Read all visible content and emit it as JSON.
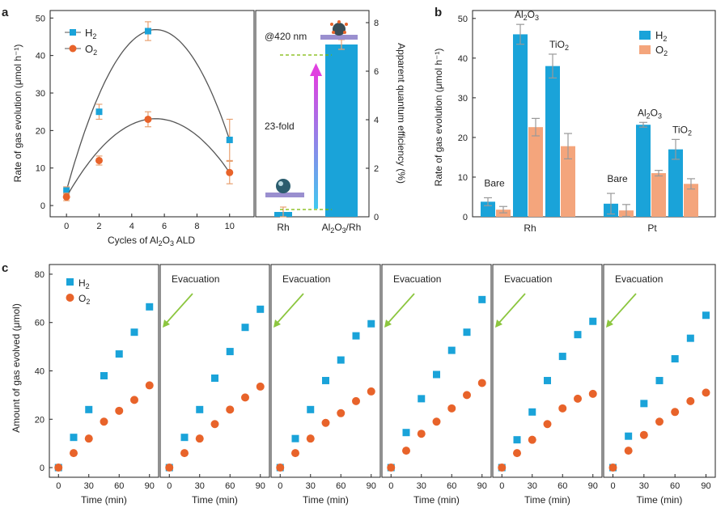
{
  "colors": {
    "blue": "#1aa3d9",
    "orange": "#e8632a",
    "bar_blue": "#1aa3d9",
    "bar_orange": "#f4a57c",
    "arrow": "#e040e0",
    "dashed": "#7ab800",
    "evac_arrow": "#8cc63f",
    "curve": "#555555",
    "err": "#e8a070"
  },
  "panel_labels": {
    "a": "a",
    "b": "b",
    "c": "c"
  },
  "chart_data": [
    {
      "id": "a_left",
      "type": "scatter",
      "xlabel_pre": "Cycles of Al",
      "xlabel_sub1": "2",
      "xlabel_mid": "O",
      "xlabel_sub2": "3",
      "xlabel_post": " ALD",
      "ylabel": "Rate of gas evolution (μmol h⁻¹)",
      "xlim": [
        -1,
        11.5
      ],
      "ylim": [
        -3,
        52
      ],
      "xticks": [
        0,
        2,
        4,
        6,
        8,
        10
      ],
      "yticks": [
        0,
        10,
        20,
        30,
        40,
        50
      ],
      "legend": {
        "h2": "H",
        "h2_sub": "2",
        "o2": "O",
        "o2_sub": "2"
      },
      "series": [
        {
          "name": "H2",
          "x": [
            0,
            2,
            5,
            10
          ],
          "y": [
            4,
            25,
            46.5,
            17.5
          ],
          "err": [
            1,
            2,
            2.5,
            5.5
          ],
          "curve_peak": [
            5.2,
            46.8
          ]
        },
        {
          "name": "O2",
          "x": [
            0,
            2,
            5,
            10
          ],
          "y": [
            2.3,
            12,
            23,
            8.8
          ],
          "err": [
            1,
            1.2,
            2,
            3
          ],
          "curve_peak": [
            5.2,
            23.1
          ]
        }
      ]
    },
    {
      "id": "a_right",
      "type": "bar",
      "ylabel": "Apparent quantum efficiency (%)",
      "categories": [
        "Rh",
        "Al2O3/Rh"
      ],
      "cat_labels": {
        "rh": "Rh",
        "alrh_pre": "Al",
        "alrh_s1": "2",
        "alrh_mid": "O",
        "alrh_s2": "3",
        "alrh_post": "/Rh"
      },
      "values": [
        0.2,
        7.1
      ],
      "err": [
        0.2,
        0.2
      ],
      "ylim": [
        0,
        8.5
      ],
      "yticks": [
        0,
        2,
        4,
        6,
        8
      ],
      "annotations": {
        "wavelength": "@420 nm",
        "fold": "23-fold"
      }
    },
    {
      "id": "b",
      "type": "bar",
      "ylabel": "Rate of gas evolution (μmol h⁻¹)",
      "ylim": [
        0,
        52
      ],
      "yticks": [
        0,
        10,
        20,
        30,
        40,
        50
      ],
      "groups": [
        "Rh",
        "Pt"
      ],
      "subgroups": [
        "Bare",
        "Al2O3",
        "TiO2"
      ],
      "sub_labels": {
        "bare": "Bare",
        "al_pre": "Al",
        "al_s1": "2",
        "al_mid": "O",
        "al_s2": "3",
        "ti_pre": "TiO",
        "ti_s": "2"
      },
      "legend": {
        "h2": "H",
        "h2_sub": "2",
        "o2": "O",
        "o2_sub": "2"
      },
      "series": [
        {
          "name": "H2",
          "values": [
            [
              3.8,
              46,
              38
            ],
            [
              3.3,
              23.2,
              17
            ]
          ],
          "err": [
            [
              1,
              2.5,
              3
            ],
            [
              2.6,
              0.6,
              2.5
            ]
          ]
        },
        {
          "name": "O2",
          "values": [
            [
              1.8,
              22.6,
              17.8
            ],
            [
              1.6,
              11,
              8.3
            ]
          ],
          "err": [
            [
              0.8,
              2.2,
              3.2
            ],
            [
              1.5,
              0.7,
              1.3
            ]
          ]
        }
      ]
    },
    {
      "id": "c",
      "type": "scatter",
      "ylabel": "Amount of gas evolved (μmol)",
      "xlabel": "Time (min)",
      "xlim": [
        -9,
        99
      ],
      "ylim": [
        -4,
        84
      ],
      "xticks": [
        0,
        30,
        60,
        90
      ],
      "yticks": [
        0,
        20,
        40,
        60,
        80
      ],
      "legend": {
        "h2": "H",
        "h2_sub": "2",
        "o2": "O",
        "o2_sub": "2"
      },
      "evacuation_label": "Evacuation",
      "x": [
        0,
        15,
        30,
        45,
        60,
        75,
        90
      ],
      "cycles": [
        {
          "h2": [
            0,
            12.5,
            24,
            38,
            47,
            56,
            66.5
          ],
          "o2": [
            0,
            6,
            12,
            19,
            23.5,
            28,
            34
          ]
        },
        {
          "h2": [
            0,
            12.5,
            24,
            37,
            48,
            58,
            65.5
          ],
          "o2": [
            0,
            6,
            12,
            18,
            24,
            29,
            33.5
          ]
        },
        {
          "h2": [
            0,
            12,
            24,
            36,
            44.5,
            54.5,
            59.5
          ],
          "o2": [
            0,
            6,
            12,
            18.5,
            22.5,
            27.5,
            31.5
          ]
        },
        {
          "h2": [
            0,
            14.5,
            28.5,
            38.5,
            48.5,
            56,
            69.5
          ],
          "o2": [
            0,
            7,
            14,
            19,
            24.5,
            30,
            35
          ]
        },
        {
          "h2": [
            0,
            11.5,
            23,
            36,
            46,
            55,
            60.5
          ],
          "o2": [
            0,
            6,
            11.5,
            18,
            24.5,
            28.5,
            30.5
          ]
        },
        {
          "h2": [
            0,
            13,
            26.5,
            36,
            45,
            53.5,
            63
          ],
          "o2": [
            0,
            7,
            13.5,
            19,
            23,
            27.5,
            31
          ]
        }
      ]
    }
  ]
}
